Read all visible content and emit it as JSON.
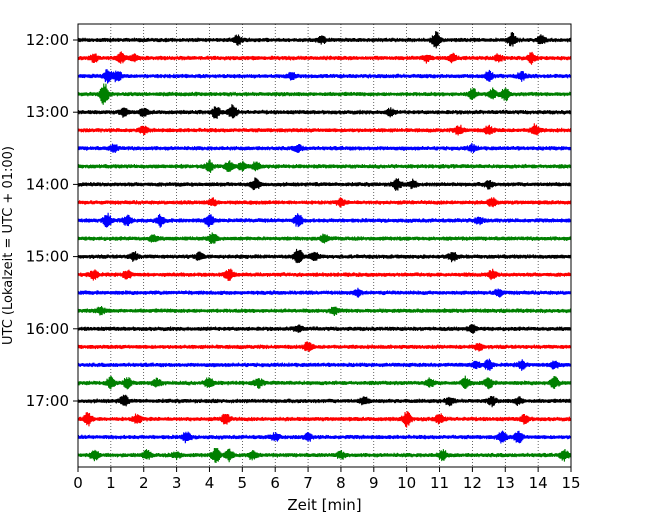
{
  "chart_data": {
    "type": "line",
    "title": "",
    "xlabel": "Zeit  [min]",
    "ylabel": "UTC (Lokalzeit = UTC + 01:00)",
    "xlim": [
      0,
      15
    ],
    "x_ticks": [
      "0",
      "1",
      "2",
      "3",
      "4",
      "5",
      "6",
      "7",
      "8",
      "9",
      "10",
      "11",
      "12",
      "13",
      "14",
      "15"
    ],
    "y_ticks": [
      "12:00",
      "13:00",
      "14:00",
      "15:00",
      "16:00",
      "17:00"
    ],
    "grid": "vertical-dotted",
    "trace_interval_min": 15,
    "trace_colors": [
      "#000000",
      "#ff0000",
      "#0000ff",
      "#008000"
    ],
    "traces": [
      {
        "start": "12:00",
        "color": "#000000",
        "events": [
          [
            4.85,
            0.6
          ],
          [
            7.4,
            0.5
          ],
          [
            10.9,
            1.1
          ],
          [
            13.2,
            0.9
          ],
          [
            14.1,
            0.6
          ]
        ]
      },
      {
        "start": "12:15",
        "color": "#ff0000",
        "events": [
          [
            0.5,
            0.5
          ],
          [
            1.3,
            0.7
          ],
          [
            1.7,
            0.6
          ],
          [
            10.6,
            0.5
          ],
          [
            11.4,
            0.6
          ],
          [
            12.8,
            0.5
          ],
          [
            13.8,
            0.7
          ]
        ]
      },
      {
        "start": "12:30",
        "color": "#0000ff",
        "events": [
          [
            0.9,
            0.9
          ],
          [
            1.2,
            0.8
          ],
          [
            6.5,
            0.5
          ],
          [
            12.5,
            0.7
          ],
          [
            13.5,
            0.6
          ]
        ]
      },
      {
        "start": "12:45",
        "color": "#008000",
        "events": [
          [
            0.8,
            1.6
          ],
          [
            12.0,
            0.8
          ],
          [
            12.6,
            0.7
          ],
          [
            13.0,
            0.9
          ]
        ]
      },
      {
        "start": "13:00",
        "color": "#000000",
        "events": [
          [
            1.4,
            0.6
          ],
          [
            2.0,
            0.5
          ],
          [
            4.2,
            0.8
          ],
          [
            4.7,
            1.0
          ],
          [
            9.5,
            0.5
          ]
        ]
      },
      {
        "start": "13:15",
        "color": "#ff0000",
        "events": [
          [
            2.0,
            0.5
          ],
          [
            11.6,
            0.7
          ],
          [
            12.5,
            0.6
          ],
          [
            13.9,
            0.8
          ]
        ]
      },
      {
        "start": "13:30",
        "color": "#0000ff",
        "events": [
          [
            1.1,
            0.5
          ],
          [
            6.7,
            0.5
          ],
          [
            12.0,
            0.5
          ]
        ]
      },
      {
        "start": "13:45",
        "color": "#008000",
        "events": [
          [
            4.0,
            0.7
          ],
          [
            4.6,
            0.8
          ],
          [
            5.0,
            0.6
          ],
          [
            5.4,
            0.6
          ]
        ]
      },
      {
        "start": "14:00",
        "color": "#000000",
        "events": [
          [
            5.4,
            0.8
          ],
          [
            9.7,
            0.8
          ],
          [
            10.2,
            0.6
          ],
          [
            12.5,
            0.5
          ]
        ]
      },
      {
        "start": "14:15",
        "color": "#ff0000",
        "events": [
          [
            4.1,
            0.5
          ],
          [
            8.0,
            0.5
          ],
          [
            12.6,
            0.6
          ]
        ]
      },
      {
        "start": "14:30",
        "color": "#0000ff",
        "events": [
          [
            0.9,
            0.9
          ],
          [
            1.5,
            0.7
          ],
          [
            2.5,
            0.8
          ],
          [
            4.0,
            0.8
          ],
          [
            6.7,
            0.9
          ],
          [
            12.2,
            0.5
          ]
        ]
      },
      {
        "start": "14:45",
        "color": "#008000",
        "events": [
          [
            2.3,
            0.5
          ],
          [
            4.1,
            0.7
          ],
          [
            7.5,
            0.5
          ]
        ]
      },
      {
        "start": "15:00",
        "color": "#000000",
        "events": [
          [
            1.7,
            0.6
          ],
          [
            3.7,
            0.5
          ],
          [
            6.7,
            1.2
          ],
          [
            7.2,
            0.6
          ],
          [
            11.4,
            0.6
          ]
        ]
      },
      {
        "start": "15:15",
        "color": "#ff0000",
        "events": [
          [
            0.5,
            0.7
          ],
          [
            1.5,
            0.6
          ],
          [
            4.6,
            0.8
          ],
          [
            12.6,
            0.6
          ]
        ]
      },
      {
        "start": "15:30",
        "color": "#0000ff",
        "events": [
          [
            8.5,
            0.5
          ],
          [
            12.8,
            0.5
          ]
        ]
      },
      {
        "start": "15:45",
        "color": "#008000",
        "events": [
          [
            0.7,
            0.5
          ],
          [
            7.8,
            0.5
          ]
        ]
      },
      {
        "start": "16:00",
        "color": "#000000",
        "events": [
          [
            6.7,
            0.5
          ],
          [
            12.0,
            0.5
          ]
        ]
      },
      {
        "start": "16:15",
        "color": "#ff0000",
        "events": [
          [
            7.0,
            0.6
          ],
          [
            12.2,
            0.5
          ]
        ]
      },
      {
        "start": "16:30",
        "color": "#0000ff",
        "events": [
          [
            12.1,
            0.5
          ],
          [
            12.5,
            0.7
          ],
          [
            13.5,
            0.6
          ],
          [
            14.5,
            0.6
          ]
        ]
      },
      {
        "start": "16:45",
        "color": "#008000",
        "events": [
          [
            1.0,
            0.8
          ],
          [
            1.5,
            0.7
          ],
          [
            2.4,
            0.6
          ],
          [
            4.0,
            0.8
          ],
          [
            5.5,
            0.6
          ],
          [
            10.7,
            0.6
          ],
          [
            11.8,
            0.8
          ],
          [
            12.5,
            0.7
          ],
          [
            14.5,
            0.8
          ]
        ]
      },
      {
        "start": "17:00",
        "color": "#000000",
        "events": [
          [
            1.4,
            0.8
          ],
          [
            8.7,
            0.5
          ],
          [
            11.3,
            0.6
          ],
          [
            12.6,
            0.6
          ],
          [
            13.4,
            0.5
          ]
        ]
      },
      {
        "start": "17:15",
        "color": "#ff0000",
        "events": [
          [
            0.3,
            0.9
          ],
          [
            1.8,
            0.7
          ],
          [
            4.5,
            0.8
          ],
          [
            10.0,
            1.0
          ],
          [
            11.0,
            0.7
          ],
          [
            13.6,
            0.6
          ]
        ]
      },
      {
        "start": "17:30",
        "color": "#0000ff",
        "events": [
          [
            3.3,
            0.7
          ],
          [
            6.0,
            0.5
          ],
          [
            7.0,
            0.5
          ],
          [
            12.9,
            0.8
          ],
          [
            13.4,
            0.8
          ]
        ]
      },
      {
        "start": "17:45",
        "color": "#008000",
        "events": [
          [
            0.5,
            0.7
          ],
          [
            2.1,
            0.6
          ],
          [
            3.0,
            0.5
          ],
          [
            4.2,
            1.0
          ],
          [
            4.6,
            0.8
          ],
          [
            5.3,
            0.6
          ],
          [
            8.0,
            0.5
          ],
          [
            11.1,
            0.7
          ],
          [
            14.8,
            0.7
          ]
        ]
      }
    ]
  }
}
